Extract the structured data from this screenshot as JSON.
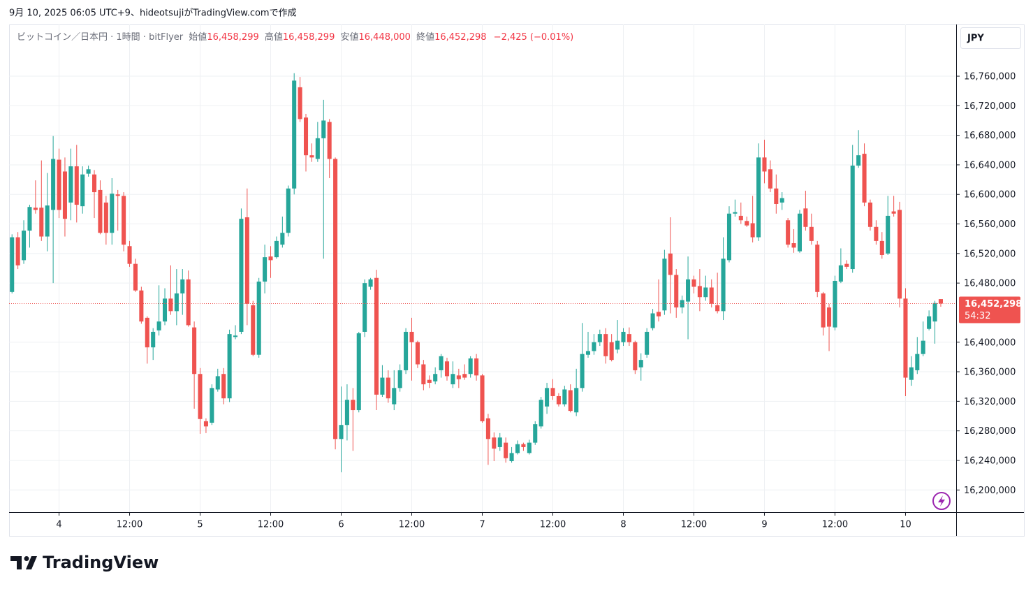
{
  "caption": "9月 10, 2025 06:05 UTC+9、hideotsujiがTradingView.comで作成",
  "header": {
    "symbol": "ビットコイン／日本円 · 1時間 · bitFlyer",
    "fields": [
      {
        "label": "始値",
        "value": "16,458,299"
      },
      {
        "label": "高値",
        "value": "16,458,299"
      },
      {
        "label": "安値",
        "value": "16,448,000"
      },
      {
        "label": "終値",
        "value": "16,452,298"
      }
    ],
    "change": "−2,425 (−0.01%)"
  },
  "currency": "JPY",
  "footer": "TradingView",
  "chart_data": {
    "type": "candlestick",
    "up_color": "#26a69a",
    "down_color": "#ef5350",
    "grid": true,
    "xlim": [
      -0.5,
      160.5
    ],
    "xticks": [
      {
        "value": 8,
        "label": "4"
      },
      {
        "value": 20,
        "label": "12:00"
      },
      {
        "value": 32,
        "label": "5"
      },
      {
        "value": 44,
        "label": "12:00"
      },
      {
        "value": 56,
        "label": "6"
      },
      {
        "value": 68,
        "label": "12:00"
      },
      {
        "value": 80,
        "label": "7"
      },
      {
        "value": 92,
        "label": "12:00"
      },
      {
        "value": 104,
        "label": "8"
      },
      {
        "value": 116,
        "label": "12:00"
      },
      {
        "value": 128,
        "label": "9"
      },
      {
        "value": 140,
        "label": "12:00"
      },
      {
        "value": 152,
        "label": "10"
      }
    ],
    "ylim": [
      16170000,
      16830000
    ],
    "yticks": [
      {
        "value": 16200000,
        "label": "16,200,000"
      },
      {
        "value": 16240000,
        "label": "16,240,000"
      },
      {
        "value": 16280000,
        "label": "16,280,000"
      },
      {
        "value": 16320000,
        "label": "16,320,000"
      },
      {
        "value": 16360000,
        "label": "16,360,000"
      },
      {
        "value": 16400000,
        "label": "16,400,000"
      },
      {
        "value": 16480000,
        "label": "16,480,000"
      },
      {
        "value": 16520000,
        "label": "16,520,000"
      },
      {
        "value": 16560000,
        "label": "16,560,000"
      },
      {
        "value": 16600000,
        "label": "16,600,000"
      },
      {
        "value": 16640000,
        "label": "16,640,000"
      },
      {
        "value": 16680000,
        "label": "16,680,000"
      },
      {
        "value": 16720000,
        "label": "16,720,000"
      },
      {
        "value": 16760000,
        "label": "16,760,000"
      }
    ],
    "last_price": {
      "value": 16452298,
      "label": "16,452,298"
    },
    "countdown": "54:32",
    "open": [
      16468000,
      16542000,
      16511000,
      16551000,
      16582000,
      16582000,
      16543000,
      16579000,
      16647000,
      16631000,
      16589000,
      16638000,
      16584000,
      16628000,
      16627000,
      16606000,
      16589000,
      16548000,
      16600000,
      16598000,
      16530000,
      16506000,
      16470000,
      16433000,
      16393000,
      16416000,
      16428000,
      16459000,
      16442000,
      16466000,
      16485000,
      16420000,
      16357000,
      16293000,
      16291000,
      16336000,
      16357000,
      16324000,
      16407000,
      16414000,
      16569000,
      16450000,
      16383000,
      16482000,
      16516000,
      16515000,
      16532000,
      16548000,
      16608000,
      16745000,
      16704000,
      16653000,
      16648000,
      16676000,
      16698000,
      16648000,
      16269000,
      16288000,
      16322000,
      16308000,
      16414000,
      16475000,
      16487000,
      16329000,
      16352000,
      16316000,
      16338000,
      16362000,
      16414000,
      16400000,
      16370000,
      16349000,
      16347000,
      16362000,
      16374000,
      16343000,
      16355000,
      16357000,
      16357000,
      16378000,
      16355000,
      16297000,
      16271000,
      16258000,
      16264000,
      16239000,
      16250000,
      16262000,
      16250000,
      16264000,
      16286000,
      16313000,
      16338000,
      16327000,
      16316000,
      16335000,
      16305000,
      16338000,
      16383000,
      16388000,
      16400000,
      16411000,
      16400000,
      16390000,
      16400000,
      16411000,
      16400000,
      16366000,
      16383000,
      16419000,
      16441000,
      16443000,
      16520000,
      16491000,
      16447000,
      16455000,
      16485000,
      16476000,
      16461000,
      16474000,
      16450000,
      16442000,
      16511000,
      16574000,
      16571000,
      16564000,
      16561000,
      16542000,
      16650000,
      16634000,
      16608000,
      16589000,
      16565000,
      16534000,
      16523000,
      16581000,
      16556000,
      16532000,
      16466000,
      16447000,
      16420000,
      16482000,
      16506000,
      16499000,
      16639000,
      16655000,
      16589000,
      16556000,
      16537000,
      16520000,
      16577000,
      16579000,
      16459000,
      16349000,
      16362000,
      16384000,
      16418000,
      16428000,
      16458299
    ],
    "high": [
      16546000,
      16549000,
      16565000,
      16586000,
      16619000,
      16646000,
      16629000,
      16679000,
      16662000,
      16650000,
      16662000,
      16667000,
      16638000,
      16639000,
      16633000,
      16619000,
      16598000,
      16622000,
      16606000,
      16603000,
      16537000,
      16513000,
      16475000,
      16435000,
      16419000,
      16477000,
      16473000,
      16504000,
      16499000,
      16499000,
      16497000,
      16428000,
      16365000,
      16297000,
      16343000,
      16364000,
      16365000,
      16417000,
      16423000,
      16581000,
      16608000,
      16456000,
      16487000,
      16532000,
      16530000,
      16543000,
      16570000,
      16612000,
      16764000,
      16759000,
      16709000,
      16669000,
      16698000,
      16728000,
      16702000,
      16650000,
      16340000,
      16343000,
      16338000,
      16414000,
      16485000,
      16487000,
      16498000,
      16369000,
      16362000,
      16362000,
      16370000,
      16419000,
      16433000,
      16402000,
      16376000,
      16355000,
      16366000,
      16384000,
      16379000,
      16374000,
      16364000,
      16370000,
      16381000,
      16384000,
      16357000,
      16303000,
      16278000,
      16277000,
      16271000,
      16258000,
      16267000,
      16264000,
      16268000,
      16293000,
      16326000,
      16345000,
      16350000,
      16331000,
      16341000,
      16343000,
      16364000,
      16426000,
      16414000,
      16411000,
      16417000,
      16419000,
      16411000,
      16430000,
      16419000,
      16420000,
      16402000,
      16385000,
      16419000,
      16445000,
      16485000,
      16525000,
      16569000,
      16499000,
      16463000,
      16516000,
      16490000,
      16499000,
      16490000,
      16485000,
      16494000,
      16542000,
      16584000,
      16593000,
      16589000,
      16570000,
      16598000,
      16669000,
      16674000,
      16646000,
      16627000,
      16603000,
      16568000,
      16553000,
      16579000,
      16605000,
      16574000,
      16537000,
      16468000,
      16452000,
      16490000,
      16527000,
      16511000,
      16667000,
      16687000,
      16669000,
      16593000,
      16565000,
      16549000,
      16598000,
      16598000,
      16590000,
      16473000,
      16381000,
      16407000,
      16428000,
      16443000,
      16456000,
      16458299
    ],
    "low": [
      16466000,
      16499000,
      16506000,
      16528000,
      16574000,
      16537000,
      16523000,
      16480000,
      16568000,
      16543000,
      16565000,
      16562000,
      16574000,
      16624000,
      16568000,
      16546000,
      16532000,
      16532000,
      16551000,
      16523000,
      16502000,
      16468000,
      16425000,
      16371000,
      16376000,
      16409000,
      16423000,
      16437000,
      16423000,
      16437000,
      16421000,
      16310000,
      16276000,
      16277000,
      16288000,
      16333000,
      16316000,
      16319000,
      16404000,
      16411000,
      16423000,
      16381000,
      16379000,
      16466000,
      16487000,
      16513000,
      16528000,
      16543000,
      16600000,
      16698000,
      16631000,
      16644000,
      16644000,
      16513000,
      16622000,
      16255000,
      16224000,
      16267000,
      16253000,
      16305000,
      16407000,
      16471000,
      16308000,
      16326000,
      16318000,
      16308000,
      16333000,
      16357000,
      16348000,
      16365000,
      16335000,
      16338000,
      16343000,
      16352000,
      16348000,
      16338000,
      16338000,
      16349000,
      16352000,
      16348000,
      16291000,
      16234000,
      16239000,
      16253000,
      16237000,
      16237000,
      16248000,
      16253000,
      16248000,
      16261000,
      16283000,
      16303000,
      16322000,
      16313000,
      16313000,
      16305000,
      16300000,
      16333000,
      16379000,
      16383000,
      16395000,
      16371000,
      16374000,
      16385000,
      16395000,
      16395000,
      16357000,
      16348000,
      16379000,
      16416000,
      16428000,
      16437000,
      16439000,
      16433000,
      16439000,
      16404000,
      16466000,
      16442000,
      16456000,
      16447000,
      16439000,
      16430000,
      16508000,
      16570000,
      16560000,
      16556000,
      16535000,
      16537000,
      16615000,
      16603000,
      16574000,
      16579000,
      16528000,
      16521000,
      16521000,
      16551000,
      16532000,
      16461000,
      16409000,
      16388000,
      16416000,
      16480000,
      16499000,
      16494000,
      16636000,
      16584000,
      16551000,
      16532000,
      16513000,
      16518000,
      16570000,
      16447000,
      16327000,
      16341000,
      16357000,
      16381000,
      16416000,
      16398000,
      16448000
    ],
    "close": [
      16542000,
      16504000,
      16551000,
      16583000,
      16579000,
      16543000,
      16585000,
      16648000,
      16579000,
      16567000,
      16638000,
      16586000,
      16627000,
      16634000,
      16603000,
      16548000,
      16548000,
      16601000,
      16598000,
      16532000,
      16506000,
      16470000,
      16428000,
      16393000,
      16414000,
      16428000,
      16459000,
      16442000,
      16466000,
      16485000,
      16423000,
      16357000,
      16296000,
      16286000,
      16338000,
      16354000,
      16324000,
      16411000,
      16409000,
      16567000,
      16452000,
      16383000,
      16482000,
      16515000,
      16511000,
      16537000,
      16548000,
      16608000,
      16754000,
      16702000,
      16653000,
      16650000,
      16676000,
      16700000,
      16648000,
      16269000,
      16288000,
      16322000,
      16308000,
      16412000,
      16480000,
      16485000,
      16329000,
      16352000,
      16324000,
      16338000,
      16362000,
      16414000,
      16400000,
      16370000,
      16343000,
      16345000,
      16357000,
      16381000,
      16354000,
      16357000,
      16350000,
      16352000,
      16378000,
      16355000,
      16293000,
      16269000,
      16256000,
      16271000,
      16243000,
      16250000,
      16262000,
      16258000,
      16264000,
      16289000,
      16322000,
      16338000,
      16327000,
      16316000,
      16336000,
      16307000,
      16338000,
      16384000,
      16388000,
      16400000,
      16411000,
      16381000,
      16376000,
      16402000,
      16414000,
      16400000,
      16362000,
      16376000,
      16414000,
      16439000,
      16435000,
      16513000,
      16491000,
      16447000,
      16457000,
      16485000,
      16475000,
      16461000,
      16474000,
      16452000,
      16442000,
      16513000,
      16574000,
      16576000,
      16565000,
      16558000,
      16542000,
      16650000,
      16631000,
      16608000,
      16587000,
      16595000,
      16532000,
      16528000,
      16574000,
      16556000,
      16537000,
      16468000,
      16420000,
      16421000,
      16483000,
      16504000,
      16502000,
      16639000,
      16653000,
      16589000,
      16556000,
      16537000,
      16518000,
      16571000,
      16574000,
      16459000,
      16352000,
      16366000,
      16384000,
      16402000,
      16435000,
      16453000,
      16452298
    ]
  }
}
